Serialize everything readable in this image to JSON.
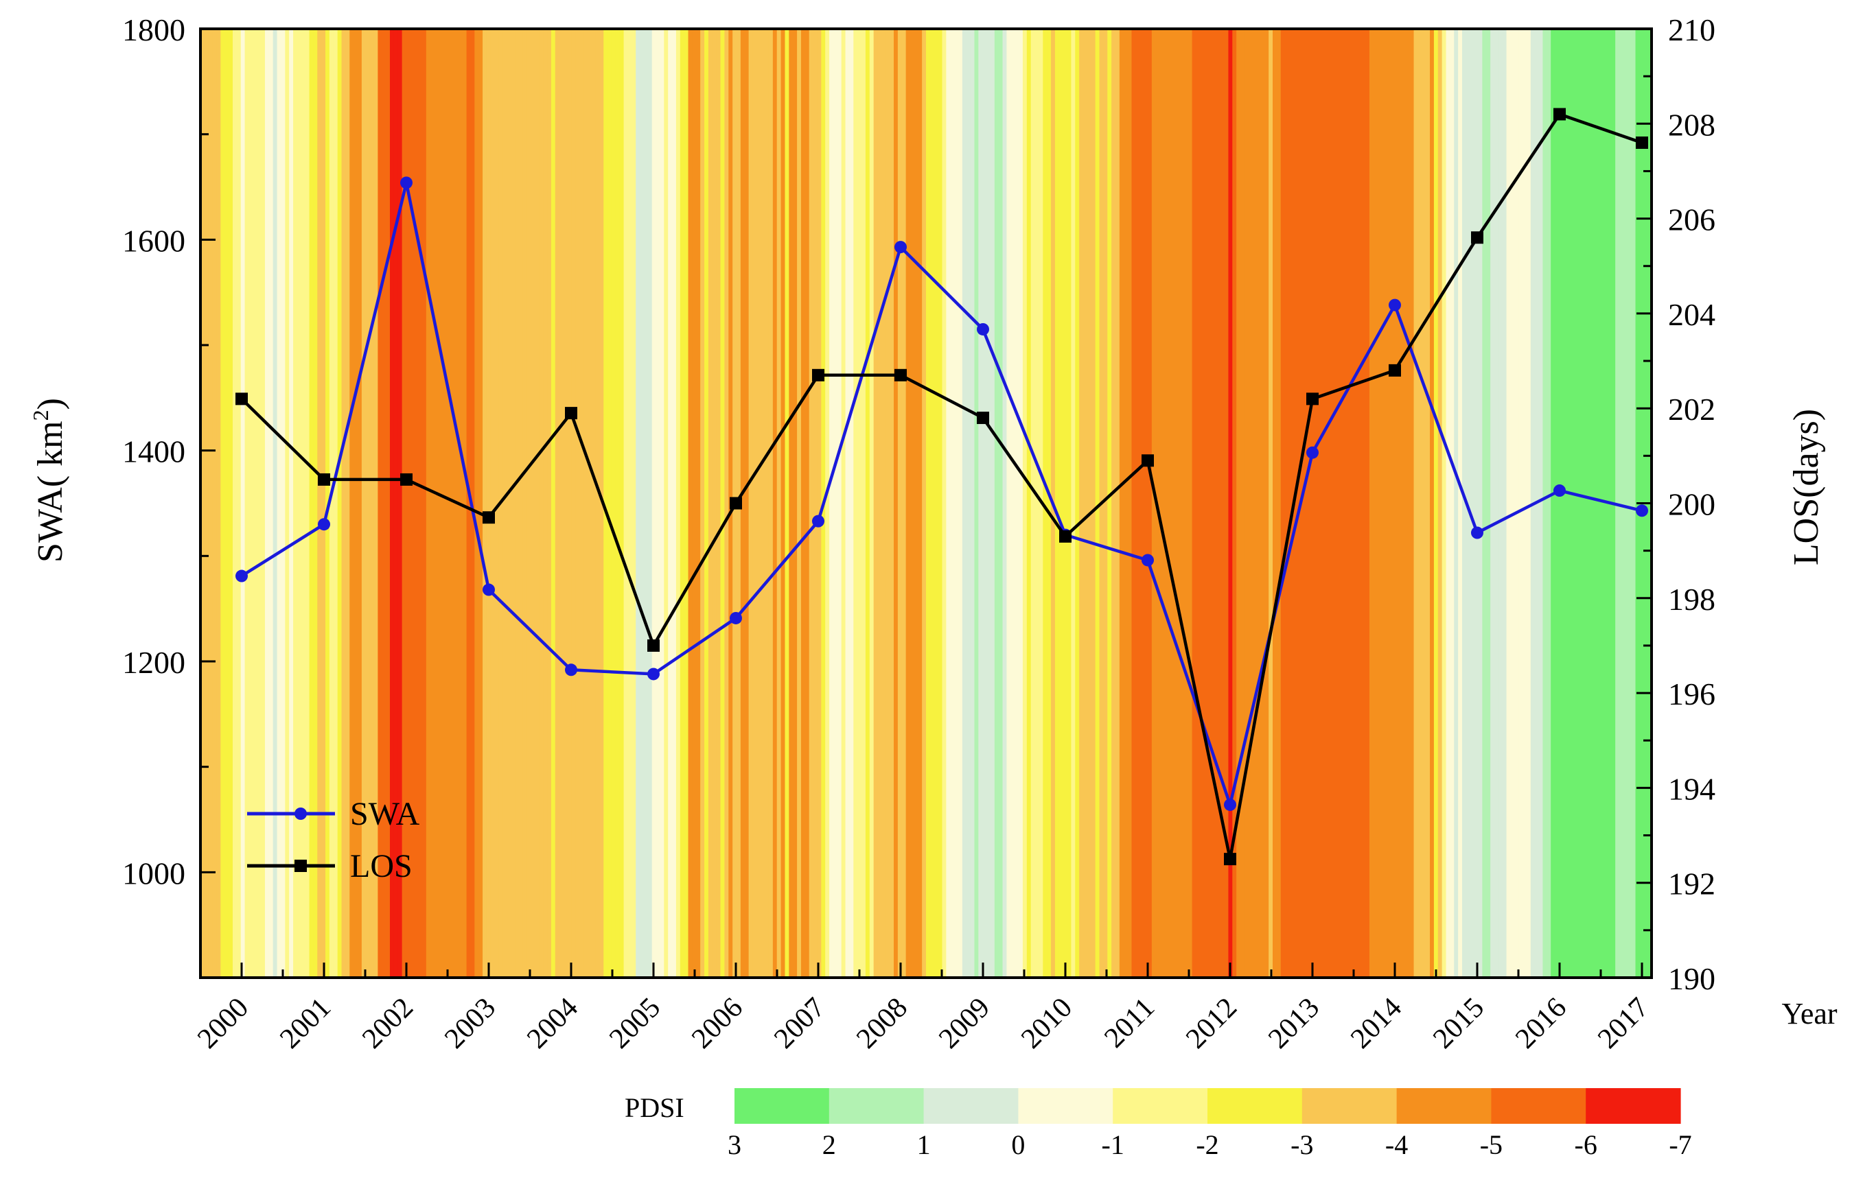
{
  "chart_data": {
    "type": "line",
    "x_axis_title": "Year",
    "y_left_label": "SWA( km",
    "y_left_label_sup": "2",
    "y_left_label_end": ")",
    "y_right_label": "LOS(days)",
    "ylim_left": [
      900,
      1800
    ],
    "ylim_right": [
      190,
      210
    ],
    "y_left_ticks": [
      1000,
      1200,
      1400,
      1600,
      1800
    ],
    "y_right_ticks": [
      190,
      192,
      194,
      196,
      198,
      200,
      202,
      204,
      206,
      208,
      210
    ],
    "categories": [
      "2000",
      "2001",
      "2002",
      "2003",
      "2004",
      "2005",
      "2006",
      "2007",
      "2008",
      "2009",
      "2010",
      "2011",
      "2012",
      "2013",
      "2014",
      "2015",
      "2016",
      "2017"
    ],
    "series": [
      {
        "name": "SWA",
        "axis": "left",
        "color": "#1a1adb",
        "marker": "circle",
        "values": [
          1281,
          1330,
          1654,
          1268,
          1192,
          1188,
          1241,
          1333,
          1593,
          1515,
          1320,
          1296,
          1064,
          1398,
          1538,
          1322,
          1362,
          1343
        ]
      },
      {
        "name": "LOS",
        "axis": "right",
        "color": "#000000",
        "marker": "square",
        "values": [
          202.2,
          200.5,
          200.5,
          199.7,
          201.9,
          197.0,
          200.0,
          202.7,
          202.7,
          201.8,
          199.3,
          200.9,
          192.5,
          202.2,
          202.8,
          205.6,
          208.2,
          207.6
        ]
      }
    ],
    "pdsi": {
      "title": "PDSI",
      "tick_labels": [
        "3",
        "2",
        "1",
        "0",
        "-1",
        "-2",
        "-3",
        "-4",
        "-5",
        "-6",
        "-7"
      ],
      "colors": [
        "#6ef06e",
        "#b2f2b2",
        "#d9ecd9",
        "#fdfad7",
        "#fdf78a",
        "#f7f23f",
        "#f9c653",
        "#f5901e",
        "#f56a12",
        "#f21d0e"
      ],
      "background_sequence": [
        -3.0,
        -3.0,
        -3.0,
        -3.0,
        -3.0,
        -2.6,
        -2.2,
        -2.2,
        -1.2,
        -1.0,
        -0.8,
        -1.6,
        -1.5,
        -1.6,
        -1.4,
        -1.6,
        -0.6,
        -0.3,
        0.2,
        -0.7,
        -0.6,
        -1.0,
        -0.2,
        -1.2,
        -1.5,
        -1.0,
        -1.1,
        -2.5,
        -2.8,
        -3.0,
        -3.0,
        -2.6,
        -1.7,
        -1.4,
        -2.2,
        -3.4,
        -3.6,
        -4.6,
        -4.5,
        -4.8,
        -3.5,
        -3.4,
        -3.5,
        -3.2,
        -5.2,
        -5.4,
        -5.6,
        -6.7,
        -6.8,
        -6.6,
        -5.6,
        -5.2,
        -5.1,
        -5.3,
        -5.1,
        -5.6,
        -4.3,
        -4.4,
        -4.5,
        -4.2,
        -4.3,
        -4.4,
        -4.4,
        -4.2,
        -4.4,
        -4.1,
        -5.2,
        -5.0,
        -4.9,
        -4.0,
        -3.6,
        -3.5,
        -3.7,
        -3.5,
        -3.7,
        -3.4,
        -3.4,
        -3.8,
        -3.6,
        -3.3,
        -3.4,
        -3.4,
        -3.3,
        -3.5,
        -3.8,
        -3.2,
        -3.0,
        -2.4,
        -3.0,
        -3.1,
        -3.2,
        -3.0,
        -3.3,
        -3.2,
        -3.8,
        -3.8,
        -3.4,
        -3.1,
        -3.7,
        -3.7,
        -2.5,
        -2.3,
        -2.4,
        -2.1,
        -2.1,
        -1.1,
        -1.5,
        -1.1,
        0.2,
        0.6,
        0.6,
        0.6,
        -0.2,
        -0.1,
        -0.6,
        -1.0,
        -0.3,
        -0.9,
        -1.8,
        -2.5,
        -2.7,
        -4.2,
        -4.5,
        -4.6,
        -3.8,
        -2.9,
        -3.4,
        -3.7,
        -3.4,
        -2.5,
        -3.9,
        -4.2,
        -3.7,
        -3.0,
        -4.2,
        -4.1,
        -3.5,
        -3.1,
        -3.6,
        -3.2,
        -3.4,
        -3.6,
        -4.2,
        -3.8,
        -4.8,
        -2.8,
        -4.2,
        -4.0,
        -3.8,
        -4.0,
        -4.2,
        -3.6,
        -3.8,
        -3.3,
        -2.6,
        -1.0,
        -0.7,
        -0.6,
        -0.7,
        -1.2,
        -0.9,
        -0.9,
        -1.6,
        -1.6,
        -1.8,
        -2.4,
        -1.7,
        -3.1,
        -3.7,
        -3.6,
        -3.5,
        -3.6,
        -4.2,
        -3.7,
        -3.6,
        -4.3,
        -4.8,
        -4.2,
        -4.1,
        -3.1,
        -2.8,
        -2.3,
        -2.3,
        -2.4,
        -1.4,
        -0.6,
        -0.1,
        -0.4,
        -0.5,
        0.1,
        0.4,
        0.9,
        1.2,
        0.6,
        0.9,
        0.7,
        0.8,
        1.8,
        1.5,
        0.7,
        -0.2,
        -0.6,
        -0.3,
        -0.7,
        -1.6,
        -2.0,
        -1.6,
        -1.6,
        -1.9,
        -2.3,
        -2.9,
        -3.3,
        -2.9,
        -2.4,
        -2.2,
        -2.3,
        -1.8,
        -2.9,
        -3.5,
        -3.6,
        -3.6,
        -3.3,
        -2.8,
        -3.4,
        -3.3,
        -2.5,
        -3.4,
        -3.7,
        -4.1,
        -4.4,
        -4.6,
        -5.3,
        -5.4,
        -5.5,
        -5.5,
        -5.2,
        -4.4,
        -4.6,
        -4.7,
        -4.7,
        -4.3,
        -4.2,
        -4.3,
        -4.5,
        -4.9,
        -4.9,
        -5.2,
        -5.7,
        -5.7,
        -5.6,
        -5.6,
        -5.7,
        -5.5,
        -5.3,
        -5.2,
        -6.8,
        -5.3,
        -4.8,
        -4.6,
        -4.5,
        -4.8,
        -4.2,
        -4.1,
        -4.6,
        -4.5,
        -3.4,
        -4.3,
        -4.9,
        -5.1,
        -5.2,
        -5.4,
        -5.4,
        -5.4,
        -5.4,
        -5.4,
        -5.3,
        -5.5,
        -5.4,
        -5.2,
        -5.6,
        -5.5,
        -5.5,
        -5.5,
        -5.5,
        -5.5,
        -5.4,
        -5.3,
        -5.5,
        -5.3,
        -5.1,
        -4.1,
        -4.4,
        -4.5,
        -4.7,
        -4.9,
        -4.9,
        -4.6,
        -4.6,
        -4.4,
        -4.5,
        -4.4,
        -3.4,
        -3.3,
        -3.5,
        -3.9,
        -4.5,
        -2.3,
        -3.3,
        -1.5,
        -0.5,
        -0.1,
        0.5,
        0.0,
        0.2,
        0.3,
        0.1,
        0.4,
        0.3,
        1.1,
        1.1,
        1.0,
        1.0,
        0.9,
        0.1,
        -0.4,
        -0.5,
        -0.7,
        -0.5,
        -0.4,
        -0.3,
        0.6,
        0.6,
        0.6,
        1.6,
        1.9,
        2.4,
        2.6,
        2.7,
        2.6,
        2.8,
        2.7,
        2.4,
        2.8,
        2.6,
        2.8,
        2.8,
        2.7,
        2.9,
        2.9,
        2.3,
        2.2,
        1.4,
        1.4,
        1.4,
        1.5,
        1.7,
        2.3,
        2.9,
        3.0,
        3.1
      ]
    }
  }
}
